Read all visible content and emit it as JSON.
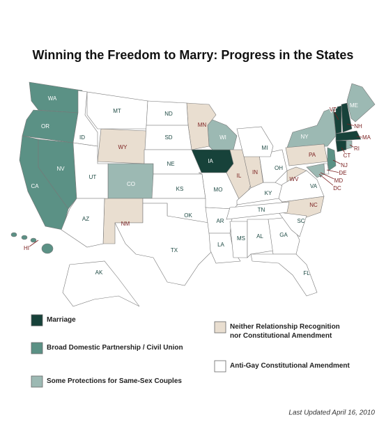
{
  "title": "Winning the Freedom to Marry: Progress in the States",
  "legend": [
    {
      "label": "Marriage",
      "color": "#17423a",
      "states": [
        "IA",
        "VT",
        "NH",
        "MA",
        "CT",
        "DC"
      ]
    },
    {
      "label": "Broad Domestic Partnership / Civil Union",
      "color": "#5b9185",
      "states": [
        "WA",
        "OR",
        "CA",
        "NV",
        "NJ",
        "HI"
      ]
    },
    {
      "label": "Some Protections for Same-Sex Couples",
      "color": "#9cb9b3",
      "states": [
        "CO",
        "WI",
        "NY",
        "ME",
        "RI",
        "MD"
      ]
    },
    {
      "label": "Neither Relationship Recognition nor Constitutional Amendment",
      "color": "#e9ded0",
      "states": [
        "WY",
        "MN",
        "NM",
        "IL",
        "IN",
        "PA",
        "WV",
        "NC"
      ]
    },
    {
      "label": "Anti-Gay Constitutional Amendment",
      "color": "#ffffff",
      "states": [
        "MT",
        "ID",
        "ND",
        "SD",
        "NE",
        "KS",
        "OK",
        "TX",
        "UT",
        "AZ",
        "AK",
        "MO",
        "AR",
        "LA",
        "MS",
        "AL",
        "GA",
        "FL",
        "SC",
        "TN",
        "KY",
        "OH",
        "MI",
        "VA",
        "DE"
      ]
    }
  ],
  "footnote": "Last Updated April 16, 2010"
}
